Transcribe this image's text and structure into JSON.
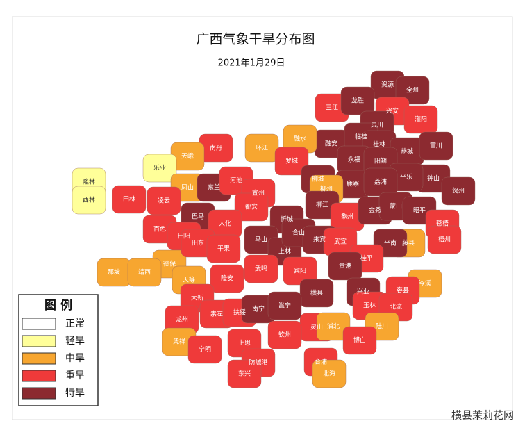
{
  "title": "广西气象干旱分布图",
  "date": "2021年1月29日",
  "legend": {
    "title": "图 例",
    "items": [
      {
        "label": "正常",
        "color": "#ffffff"
      },
      {
        "label": "轻旱",
        "color": "#ffff99"
      },
      {
        "label": "中旱",
        "color": "#f7a630"
      },
      {
        "label": "重旱",
        "color": "#ef3a3a"
      },
      {
        "label": "特旱",
        "color": "#8c2a30"
      }
    ]
  },
  "counties": [
    {
      "name": "资源",
      "level": "特旱"
    },
    {
      "name": "全州",
      "level": "特旱"
    },
    {
      "name": "三江",
      "level": "重旱"
    },
    {
      "name": "龙胜",
      "level": "特旱"
    },
    {
      "name": "兴安",
      "level": "重旱"
    },
    {
      "name": "灌阳",
      "level": "重旱"
    },
    {
      "name": "灵川",
      "level": "特旱"
    },
    {
      "name": "融安",
      "level": "特旱"
    },
    {
      "name": "临桂",
      "level": "特旱"
    },
    {
      "name": "桂林",
      "level": "特旱"
    },
    {
      "name": "恭城",
      "level": "特旱"
    },
    {
      "name": "富川",
      "level": "特旱"
    },
    {
      "name": "融水",
      "level": "中旱"
    },
    {
      "name": "环江",
      "level": "中旱"
    },
    {
      "name": "南丹",
      "level": "重旱"
    },
    {
      "name": "天峨",
      "level": "中旱"
    },
    {
      "name": "乐业",
      "level": "轻旱"
    },
    {
      "name": "永福",
      "level": "特旱"
    },
    {
      "name": "阳朔",
      "level": "特旱"
    },
    {
      "name": "钟山",
      "level": "特旱"
    },
    {
      "name": "平乐",
      "level": "特旱"
    },
    {
      "name": "罗城",
      "level": "重旱"
    },
    {
      "name": "凤山",
      "level": "中旱"
    },
    {
      "name": "东兰",
      "level": "特旱"
    },
    {
      "name": "河池",
      "level": "重旱"
    },
    {
      "name": "宜州",
      "level": "重旱"
    },
    {
      "name": "柳城",
      "level": "特旱"
    },
    {
      "name": "鹿寨",
      "level": "特旱"
    },
    {
      "name": "荔浦",
      "level": "特旱"
    },
    {
      "name": "贺州",
      "level": "特旱"
    },
    {
      "name": "隆林",
      "level": "轻旱"
    },
    {
      "name": "西林",
      "level": "轻旱"
    },
    {
      "name": "田林",
      "level": "重旱"
    },
    {
      "name": "凌云",
      "level": "重旱"
    },
    {
      "name": "巴马",
      "level": "特旱"
    },
    {
      "name": "都安",
      "level": "重旱"
    },
    {
      "name": "柳州",
      "level": "中旱"
    },
    {
      "name": "柳江",
      "level": "特旱"
    },
    {
      "name": "象州",
      "level": "重旱"
    },
    {
      "name": "金秀",
      "level": "特旱"
    },
    {
      "name": "蒙山",
      "level": "特旱"
    },
    {
      "name": "昭平",
      "level": "特旱"
    },
    {
      "name": "忻城",
      "level": "特旱"
    },
    {
      "name": "苍梧",
      "level": "重旱"
    },
    {
      "name": "百色",
      "level": "重旱"
    },
    {
      "name": "田阳",
      "level": "重旱"
    },
    {
      "name": "大化",
      "level": "重旱"
    },
    {
      "name": "马山",
      "level": "特旱"
    },
    {
      "name": "上林",
      "level": "特旱"
    },
    {
      "name": "合山",
      "level": "特旱"
    },
    {
      "name": "来宾",
      "level": "特旱"
    },
    {
      "name": "武宣",
      "level": "重旱"
    },
    {
      "name": "藤县",
      "level": "中旱"
    },
    {
      "name": "梧州",
      "level": "重旱"
    },
    {
      "name": "平南",
      "level": "特旱"
    },
    {
      "name": "德保",
      "level": "中旱"
    },
    {
      "name": "田东",
      "level": "重旱"
    },
    {
      "name": "平果",
      "level": "重旱"
    },
    {
      "name": "那坡",
      "level": "中旱"
    },
    {
      "name": "靖西",
      "level": "中旱"
    },
    {
      "name": "宾阳",
      "level": "重旱"
    },
    {
      "name": "桂平",
      "level": "重旱"
    },
    {
      "name": "岑溪",
      "level": "中旱"
    },
    {
      "name": "天等",
      "level": "中旱"
    },
    {
      "name": "隆安",
      "level": "重旱"
    },
    {
      "name": "武鸣",
      "level": "重旱"
    },
    {
      "name": "贵港",
      "level": "特旱"
    },
    {
      "name": "大新",
      "level": "重旱"
    },
    {
      "name": "横县",
      "level": "特旱"
    },
    {
      "name": "兴业",
      "level": "特旱"
    },
    {
      "name": "容县",
      "level": "重旱"
    },
    {
      "name": "崇左",
      "level": "重旱"
    },
    {
      "name": "扶绥",
      "level": "重旱"
    },
    {
      "name": "南宁",
      "level": "特旱"
    },
    {
      "name": "邕宁",
      "level": "特旱"
    },
    {
      "name": "玉林",
      "level": "重旱"
    },
    {
      "name": "北流",
      "level": "重旱"
    },
    {
      "name": "灵山",
      "level": "重旱"
    },
    {
      "name": "浦北",
      "level": "中旱"
    },
    {
      "name": "陆川",
      "level": "中旱"
    },
    {
      "name": "龙州",
      "level": "重旱"
    },
    {
      "name": "凭祥",
      "level": "中旱"
    },
    {
      "name": "宁明",
      "level": "重旱"
    },
    {
      "name": "上思",
      "level": "重旱"
    },
    {
      "name": "钦州",
      "level": "重旱"
    },
    {
      "name": "博白",
      "level": "重旱"
    },
    {
      "name": "防城港",
      "level": "重旱"
    },
    {
      "name": "东兴",
      "level": "重旱"
    },
    {
      "name": "合浦",
      "level": "重旱"
    },
    {
      "name": "北海",
      "level": "中旱"
    }
  ],
  "watermark": "横县茉莉花网"
}
